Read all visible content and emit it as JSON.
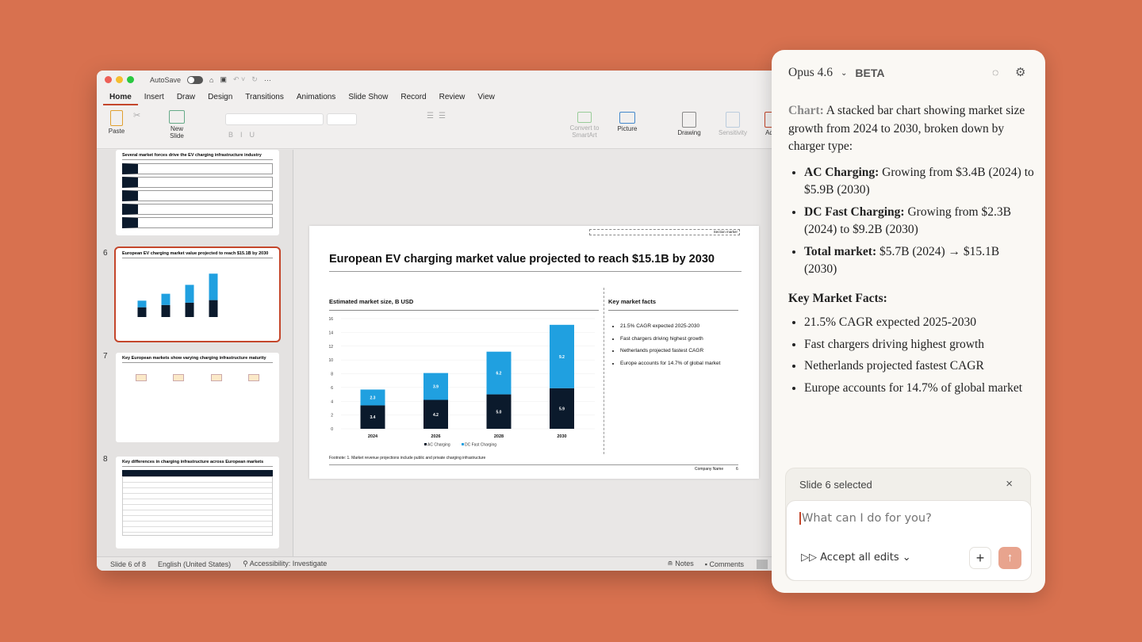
{
  "window": {
    "autosave": "AutoSave",
    "tabs": [
      "Home",
      "Insert",
      "Draw",
      "Design",
      "Transitions",
      "Animations",
      "Slide Show",
      "Record",
      "Review",
      "View"
    ],
    "ribbon": {
      "paste": "Paste",
      "new_slide": "New Slide",
      "convert": "Convert to SmartArt",
      "picture": "Picture",
      "drawing": "Drawing",
      "sensitivity": "Sensitivity",
      "add": "Ad"
    }
  },
  "thumbnails": [
    {
      "number": "",
      "title": "Several market forces drive the EV charging infrastructure industry"
    },
    {
      "number": "6",
      "title": "European EV charging market value projected to reach $15.1B by 2030"
    },
    {
      "number": "7",
      "title": "Key European markets show varying charging infrastructure maturity"
    },
    {
      "number": "8",
      "title": "Key differences in charging infrastructure across European markets"
    }
  ],
  "status": {
    "slide": "Slide 6 of 8",
    "language": "English (United States)",
    "accessibility": "Accessibility: Investigate",
    "notes": "Notes",
    "comments": "Comments"
  },
  "slide": {
    "section_marker": "Section marker",
    "title": "European EV charging market value projected to reach $15.1B by 2030",
    "facts_title": "Key market facts",
    "facts": [
      "21.5% CAGR expected 2025-2030",
      "Fast chargers driving highest growth",
      "Netherlands projected fastest CAGR",
      "Europe accounts for 14.7% of global market"
    ],
    "footnote": "Footnote: 1. Market revenue projections include public and private charging infrastructure",
    "company": "Company Name",
    "page": "6"
  },
  "chart_data": {
    "type": "bar",
    "stacked": true,
    "title": "Estimated market size, B USD",
    "categories": [
      "2024",
      "2026",
      "2028",
      "2030"
    ],
    "series": [
      {
        "name": "AC Charging",
        "color": "#0b1a2c",
        "values": [
          3.4,
          4.2,
          5.0,
          5.9
        ]
      },
      {
        "name": "DC Fast Charging",
        "color": "#20a0e0",
        "values": [
          2.3,
          3.9,
          6.2,
          9.2
        ]
      }
    ],
    "ylim": [
      0,
      16
    ],
    "yticks": [
      0,
      2,
      4,
      6,
      8,
      10,
      12,
      14,
      16
    ],
    "grid": true,
    "legend": "bottom"
  },
  "panel": {
    "model": "Opus 4.6",
    "beta": "BETA",
    "intro_label": "Chart:",
    "intro": " A stacked bar chart showing market size growth from 2024 to 2030, broken down by charger type:",
    "bullets": [
      {
        "b": "AC Charging:",
        "t": " Growing from $3.4B (2024) to $5.9B (2030)"
      },
      {
        "b": "DC Fast Charging:",
        "t": " Growing from $2.3B (2024) to $9.2B (2030)"
      },
      {
        "b": "Total market:",
        "t": " $5.7B (2024) → $15.1B (2030)"
      }
    ],
    "facts_heading": "Key Market Facts:",
    "facts": [
      "21.5% CAGR expected 2025-2030",
      "Fast chargers driving highest growth",
      "Netherlands projected fastest CAGR",
      "Europe accounts for 14.7% of global market"
    ],
    "context": "Slide 6 selected",
    "placeholder": "What can I do for you?",
    "accept": "Accept all edits"
  },
  "colors": {
    "background": "#d8714f",
    "accent": "#c4462b",
    "send": "#e8a48e"
  }
}
